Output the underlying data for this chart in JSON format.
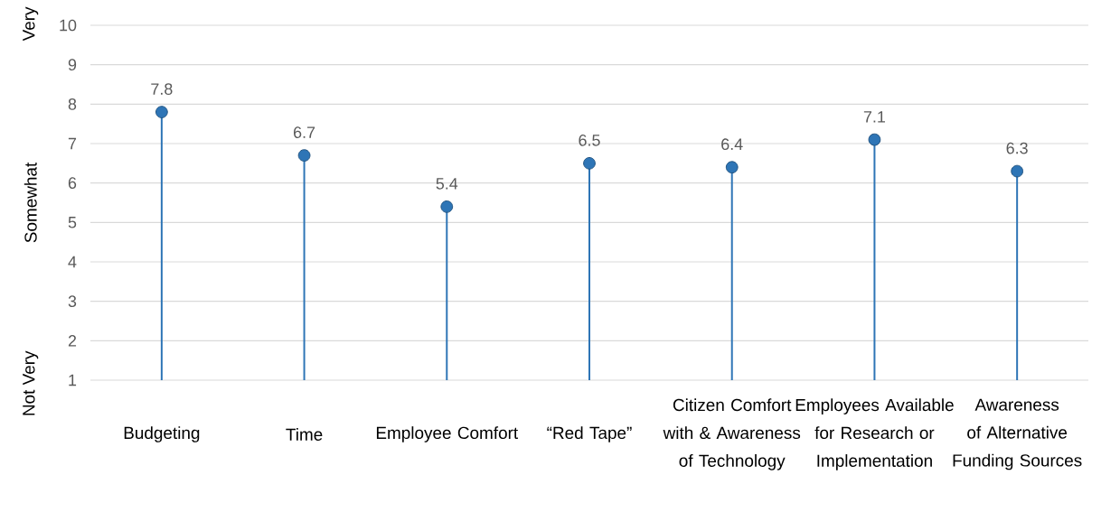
{
  "chart_data": {
    "type": "lollipop",
    "categories": [
      "Budgeting",
      "Time",
      "Employee Comfort",
      "“Red Tape”",
      "Citizen Comfort with & Awareness of Technology",
      "Employees Available for Research or Implementation",
      "Awareness of Alternative Funding Sources"
    ],
    "values": [
      7.8,
      6.7,
      5.4,
      6.5,
      6.4,
      7.1,
      6.3
    ],
    "color": "#2e75b6",
    "marker": "circle",
    "data_labels": true,
    "grid": "y",
    "ylim": [
      1,
      10
    ],
    "yticks": [
      1,
      2,
      3,
      4,
      5,
      6,
      7,
      8,
      9,
      10
    ],
    "annotations": [
      "Very",
      "Somewhat",
      "Not Very"
    ]
  }
}
